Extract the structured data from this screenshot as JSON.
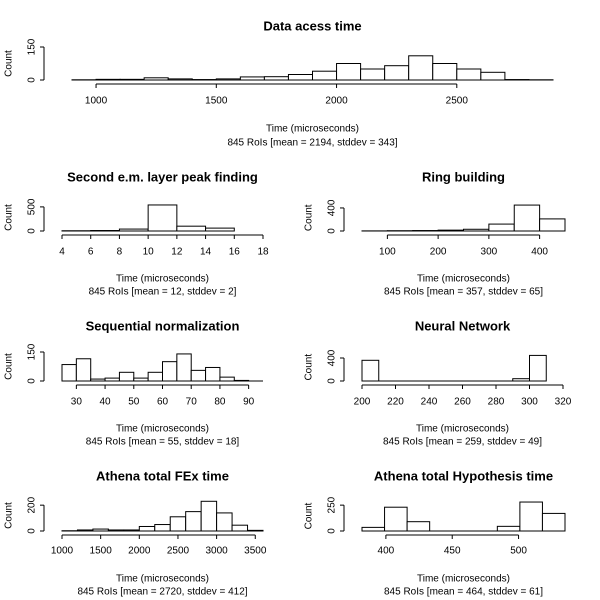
{
  "chart_data": [
    {
      "type": "histogram",
      "title": "Data acess time",
      "xlabel": "Time (microseconds)",
      "subtitle": "845 RoIs [mean = 2194, stddev = 343]",
      "ylabel": "Count",
      "color": "#ffffff",
      "bins": [
        900,
        1000,
        1100,
        1200,
        1300,
        1400,
        1500,
        1600,
        1700,
        1800,
        1900,
        2000,
        2100,
        2200,
        2300,
        2400,
        2500,
        2600,
        2700,
        2800,
        2900
      ],
      "values": [
        1,
        3,
        3,
        10,
        5,
        2,
        5,
        14,
        15,
        25,
        40,
        75,
        50,
        65,
        110,
        75,
        50,
        35,
        2,
        1
      ],
      "xlim": [
        900,
        2900
      ],
      "ylim": [
        0,
        150
      ],
      "xticks": [
        1000,
        1500,
        2000,
        2500
      ],
      "yticks": [
        0,
        150
      ]
    },
    {
      "type": "histogram",
      "title": "Second e.m. layer peak finding",
      "xlabel": "Time (microseconds)",
      "subtitle": "845 RoIs [mean = 12, stddev = 2]",
      "ylabel": "Count",
      "color": "#ffffff",
      "bins": [
        4,
        6,
        8,
        10,
        12,
        14,
        16
      ],
      "values": [
        5,
        10,
        40,
        540,
        100,
        60
      ],
      "xlim": [
        4,
        18
      ],
      "ylim": [
        0,
        560
      ],
      "xticks": [
        4,
        6,
        8,
        10,
        12,
        14,
        16,
        18
      ],
      "yticks": [
        0,
        500
      ]
    },
    {
      "type": "histogram",
      "title": "Ring building",
      "xlabel": "Time (microseconds)",
      "subtitle": "845 RoIs [mean = 357, stddev = 65]",
      "ylabel": "Count",
      "color": "#ffffff",
      "bins": [
        50,
        100,
        150,
        200,
        250,
        300,
        350,
        400,
        450
      ],
      "values": [
        2,
        5,
        8,
        15,
        30,
        120,
        450,
        210
      ],
      "xlim": [
        50,
        450
      ],
      "ylim": [
        0,
        460
      ],
      "xticks": [
        100,
        200,
        300,
        400
      ],
      "yticks": [
        0,
        400
      ]
    },
    {
      "type": "histogram",
      "title": "Sequential normalization",
      "xlabel": "Time (microseconds)",
      "subtitle": "845 RoIs [mean = 55, stddev = 18]",
      "ylabel": "Count",
      "color": "#ffffff",
      "bins": [
        25,
        30,
        35,
        40,
        45,
        50,
        55,
        60,
        65,
        70,
        75,
        80,
        85,
        90,
        95
      ],
      "values": [
        85,
        115,
        10,
        15,
        45,
        15,
        45,
        100,
        140,
        55,
        70,
        20,
        3,
        0
      ],
      "xlim": [
        25,
        95
      ],
      "ylim": [
        0,
        150
      ],
      "xticks": [
        30,
        40,
        50,
        60,
        70,
        80,
        90
      ],
      "yticks": [
        0,
        150
      ]
    },
    {
      "type": "histogram",
      "title": "Neural Network",
      "xlabel": "Time (microseconds)",
      "subtitle": "845 RoIs [mean = 259, stddev = 49]",
      "ylabel": "Count",
      "color": "#ffffff",
      "bins": [
        200,
        210,
        220,
        230,
        240,
        250,
        260,
        270,
        280,
        290,
        300,
        310
      ],
      "values": [
        360,
        0,
        0,
        0,
        0,
        0,
        0,
        0,
        0,
        40,
        445
      ],
      "xlim": [
        200,
        320
      ],
      "ylim": [
        0,
        480
      ],
      "xticks": [
        200,
        220,
        240,
        260,
        280,
        300,
        320
      ],
      "yticks": [
        0,
        400
      ]
    },
    {
      "type": "histogram",
      "title": "Athena total FEx time",
      "xlabel": "Time (microseconds)",
      "subtitle": "845 RoIs [mean = 2720, stddev = 412]",
      "ylabel": "Count",
      "color": "#ffffff",
      "bins": [
        1000,
        1200,
        1400,
        1600,
        1800,
        2000,
        2200,
        2400,
        2600,
        2800,
        3000,
        3200,
        3400,
        3600
      ],
      "values": [
        2,
        8,
        15,
        8,
        8,
        35,
        50,
        110,
        150,
        230,
        140,
        45,
        5
      ],
      "xlim": [
        1000,
        3600
      ],
      "ylim": [
        0,
        240
      ],
      "xticks": [
        1000,
        1500,
        2000,
        2500,
        3000,
        3500
      ],
      "yticks": [
        0,
        200
      ]
    },
    {
      "type": "histogram",
      "title": "Athena total Hypothesis time",
      "xlabel": "Time (microseconds)",
      "subtitle": "845 RoIs [mean = 464, stddev = 61]",
      "ylabel": "Count",
      "color": "#ffffff",
      "bins": [
        382,
        399,
        416,
        433,
        450,
        467,
        484,
        501,
        518,
        535
      ],
      "values": [
        35,
        230,
        90,
        0,
        0,
        0,
        45,
        280,
        170
      ],
      "xlim": [
        382,
        535
      ],
      "ylim": [
        0,
        290
      ],
      "xticks": [
        400,
        450,
        500
      ],
      "yticks": [
        0,
        250
      ]
    }
  ]
}
